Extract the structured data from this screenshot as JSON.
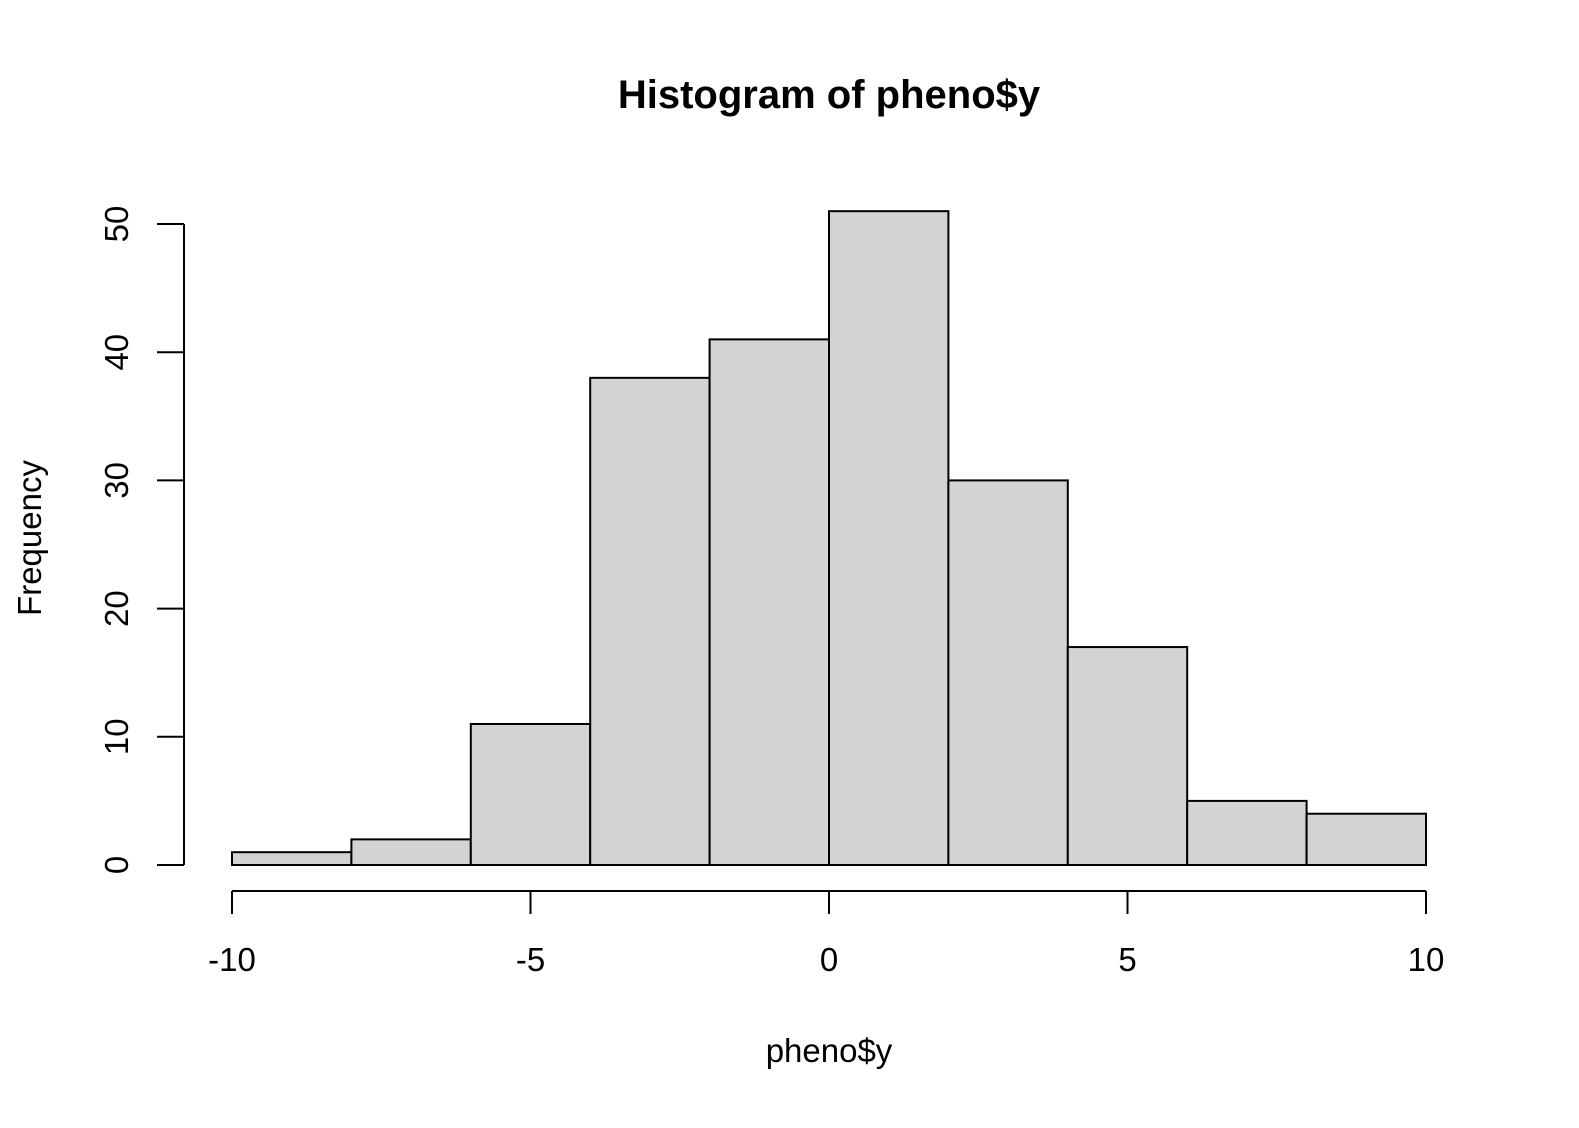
{
  "chart_data": {
    "type": "bar",
    "title": "Histogram of pheno$y",
    "xlabel": "pheno$y",
    "ylabel": "Frequency",
    "bins": [
      {
        "from": -10,
        "to": -8,
        "count": 1
      },
      {
        "from": -8,
        "to": -6,
        "count": 2
      },
      {
        "from": -6,
        "to": -4,
        "count": 11
      },
      {
        "from": -4,
        "to": -2,
        "count": 38
      },
      {
        "from": -2,
        "to": 0,
        "count": 41
      },
      {
        "from": 0,
        "to": 2,
        "count": 51
      },
      {
        "from": 2,
        "to": 4,
        "count": 30
      },
      {
        "from": 4,
        "to": 6,
        "count": 17
      },
      {
        "from": 6,
        "to": 8,
        "count": 5
      },
      {
        "from": 8,
        "to": 10,
        "count": 4
      }
    ],
    "x_ticks": [
      -10,
      -5,
      0,
      5,
      10
    ],
    "x_tick_labels": [
      "-10",
      "-5",
      "0",
      "5",
      "10"
    ],
    "y_ticks": [
      0,
      10,
      20,
      30,
      40,
      50
    ],
    "y_tick_labels": [
      "0",
      "10",
      "20",
      "30",
      "40",
      "50"
    ],
    "xlim": [
      -10,
      10
    ],
    "ylim": [
      0,
      50
    ],
    "grid": false,
    "legend": "none",
    "bar_fill": "#d3d3d3",
    "bar_stroke": "#000000"
  }
}
